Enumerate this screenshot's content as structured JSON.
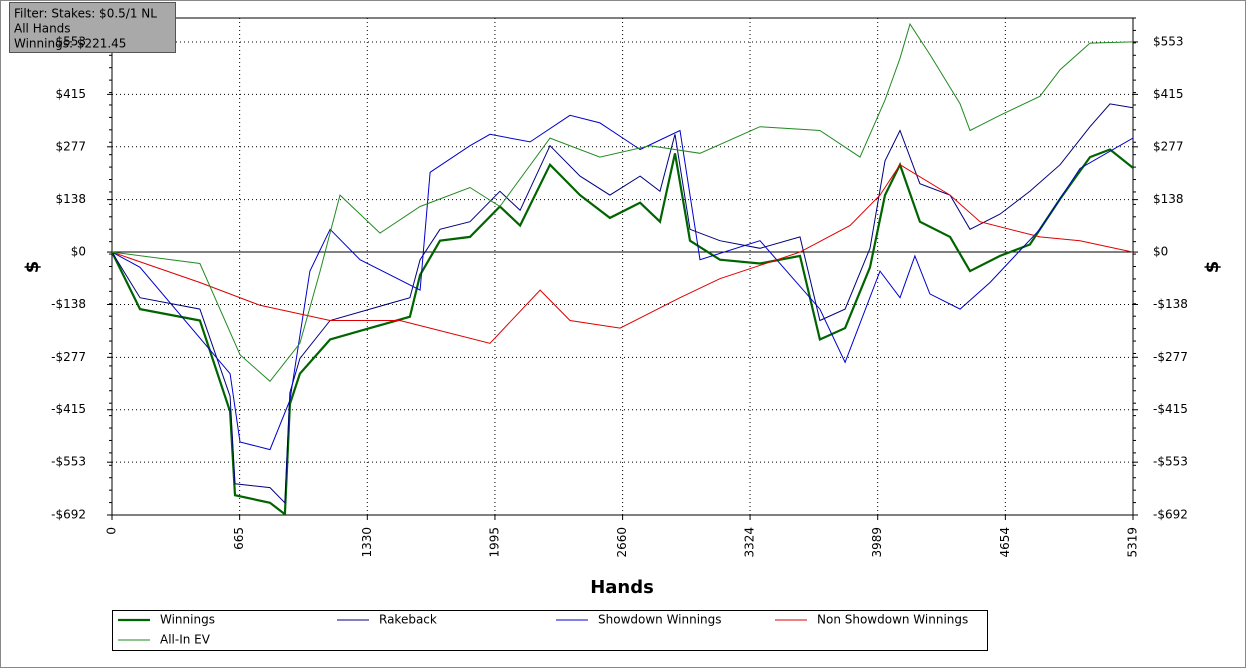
{
  "chart_data": {
    "type": "line",
    "filter_lines": [
      "Filter: Stakes: $0.5/1 NL",
      "All Hands",
      "Winnings: $221.45"
    ],
    "x_label": "Hands",
    "y_label": "$",
    "xlim": [
      0,
      5319
    ],
    "xticks": [
      0,
      665,
      1330,
      1995,
      2660,
      3324,
      3989,
      4654,
      5319
    ],
    "ylim": [
      -692,
      616
    ],
    "yticks": [
      {
        "value": 553,
        "label": "$553"
      },
      {
        "value": 415,
        "label": "$415"
      },
      {
        "value": 277,
        "label": "$277"
      },
      {
        "value": 138,
        "label": "$138"
      },
      {
        "value": 0,
        "label": "$0"
      },
      {
        "value": -138,
        "label": "-$138"
      },
      {
        "value": -277,
        "label": "-$277"
      },
      {
        "value": -415,
        "label": "-$415"
      },
      {
        "value": -553,
        "label": "-$553"
      },
      {
        "value": -692,
        "label": "-$692"
      }
    ],
    "grid": true,
    "series": [
      {
        "name": "Winnings",
        "color": "#006400",
        "width": 2.2,
        "x": [
          0,
          146,
          458,
          615,
          641,
          823,
          901,
          927,
          979,
          1136,
          1344,
          1552,
          1605,
          1709,
          1865,
          2021,
          2126,
          2282,
          2438,
          2594,
          2751,
          2855,
          2933,
          3011,
          3167,
          3376,
          3584,
          3688,
          3819,
          3949,
          4027,
          4105,
          4209,
          4366,
          4470,
          4626,
          4782,
          4939,
          5095,
          5199,
          5319
        ],
        "values": [
          0,
          -150,
          -180,
          -420,
          -640,
          -660,
          -690,
          -400,
          -320,
          -230,
          -200,
          -170,
          -60,
          30,
          40,
          120,
          70,
          230,
          150,
          90,
          130,
          80,
          260,
          30,
          -20,
          -30,
          -10,
          -230,
          -200,
          -40,
          150,
          230,
          80,
          40,
          -50,
          -10,
          20,
          140,
          250,
          270,
          221.45
        ]
      },
      {
        "name": "Rakeback",
        "color": "#000080",
        "width": 1,
        "x": [
          0,
          146,
          458,
          615,
          641,
          823,
          901,
          927,
          979,
          1136,
          1344,
          1552,
          1605,
          1709,
          1865,
          2021,
          2126,
          2282,
          2438,
          2594,
          2751,
          2855,
          2933,
          3011,
          3167,
          3376,
          3584,
          3688,
          3819,
          3949,
          4027,
          4105,
          4209,
          4366,
          4470,
          4626,
          4782,
          4939,
          5095,
          5199,
          5319
        ],
        "values": [
          0,
          -120,
          -150,
          -380,
          -610,
          -620,
          -660,
          -370,
          -280,
          -180,
          -150,
          -120,
          -20,
          60,
          80,
          160,
          110,
          280,
          200,
          150,
          200,
          160,
          310,
          60,
          30,
          10,
          40,
          -180,
          -150,
          10,
          240,
          320,
          180,
          150,
          60,
          100,
          160,
          230,
          330,
          390,
          380
        ]
      },
      {
        "name": "Showdown Winnings",
        "color": "#0000cd",
        "width": 1,
        "x": [
          0,
          146,
          615,
          667,
          823,
          927,
          1031,
          1136,
          1292,
          1605,
          1657,
          1865,
          1969,
          2178,
          2386,
          2542,
          2751,
          2959,
          3063,
          3376,
          3688,
          3819,
          4001,
          4105,
          4183,
          4261,
          4418,
          4574,
          4834,
          5043,
          5319
        ],
        "values": [
          0,
          -40,
          -320,
          -500,
          -520,
          -390,
          -50,
          60,
          -20,
          -100,
          210,
          280,
          310,
          290,
          360,
          340,
          270,
          320,
          -20,
          30,
          -150,
          -290,
          -50,
          -120,
          -10,
          -110,
          -150,
          -80,
          60,
          220,
          300
        ]
      },
      {
        "name": "Non Showdown Winnings",
        "color": "#dd0000",
        "width": 1,
        "x": [
          0,
          458,
          771,
          1136,
          1500,
          1657,
          1969,
          2230,
          2386,
          2647,
          2959,
          3167,
          3584,
          3845,
          4001,
          4105,
          4366,
          4522,
          4834,
          5043,
          5319
        ],
        "values": [
          0,
          -80,
          -140,
          -180,
          -180,
          -200,
          -240,
          -100,
          -180,
          -200,
          -120,
          -70,
          0,
          70,
          150,
          230,
          150,
          80,
          40,
          30,
          0
        ]
      },
      {
        "name": "All-In EV",
        "color": "#228b22",
        "width": 1,
        "x": [
          0,
          458,
          667,
          823,
          979,
          1084,
          1188,
          1396,
          1605,
          1865,
          2021,
          2282,
          2542,
          2803,
          3063,
          3376,
          3688,
          3897,
          4027,
          4105,
          4157,
          4261,
          4418,
          4470,
          4626,
          4834,
          4939,
          5095,
          5319
        ],
        "values": [
          0,
          -30,
          -270,
          -340,
          -240,
          -50,
          150,
          50,
          120,
          170,
          120,
          300,
          250,
          280,
          260,
          330,
          320,
          250,
          400,
          510,
          600,
          520,
          390,
          320,
          360,
          410,
          480,
          550,
          553
        ]
      }
    ]
  }
}
